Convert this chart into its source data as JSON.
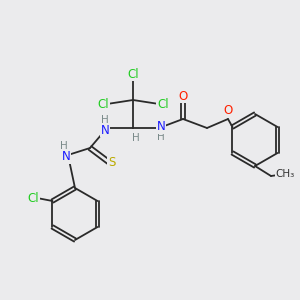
{
  "bg_color": "#ebebed",
  "atom_colors": {
    "C": "#1a1a1a",
    "H": "#7a8a8a",
    "N": "#1a1aff",
    "O": "#ff2000",
    "S": "#bbaa00",
    "Cl": "#22cc22"
  },
  "bond_color": "#2a2a2a",
  "font_size": 8.5,
  "figsize": [
    3.0,
    3.0
  ],
  "dpi": 100,
  "bond_lw": 1.3
}
